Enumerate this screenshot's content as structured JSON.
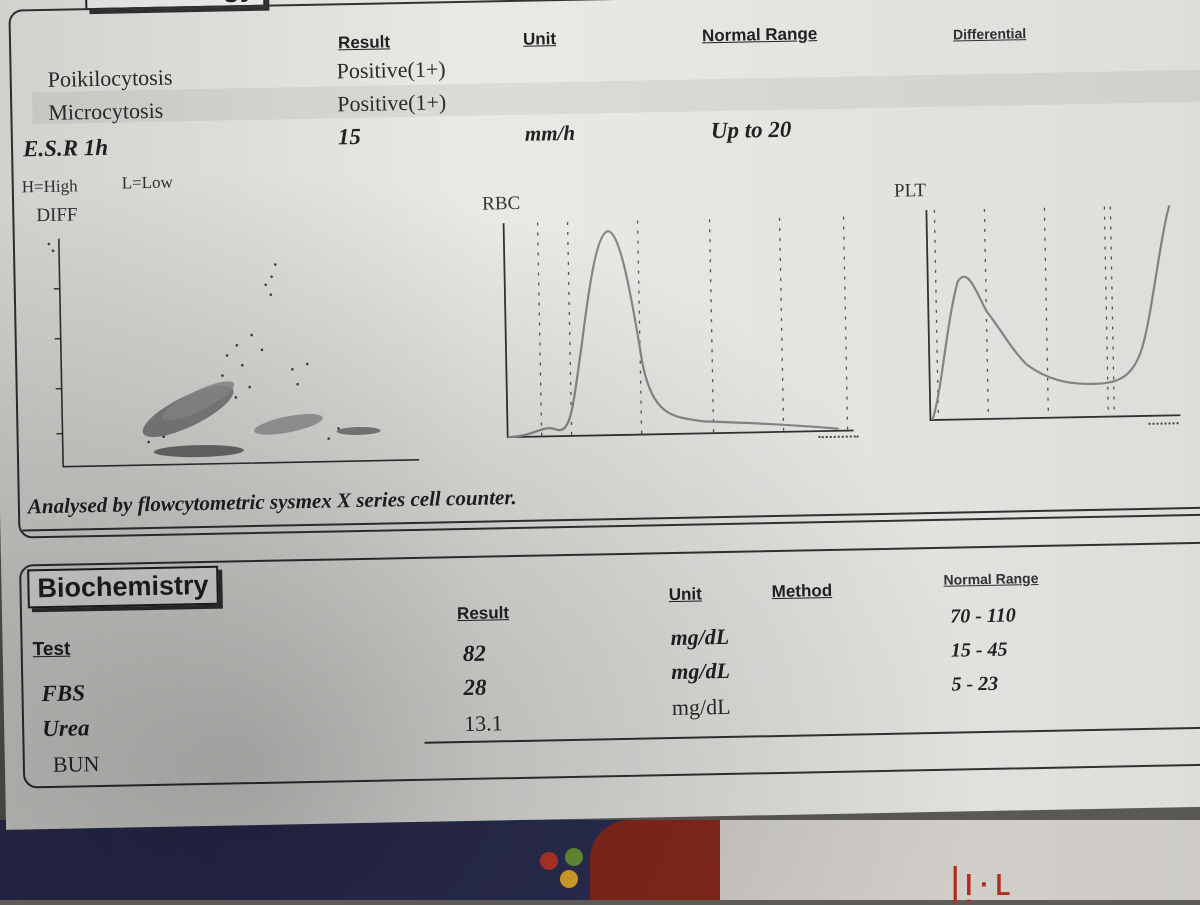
{
  "hematology": {
    "section_title": "Hematology",
    "headers": {
      "result": "Result",
      "unit": "Unit",
      "normal_range": "Normal Range",
      "differential": "Differential"
    },
    "rows": [
      {
        "test": "Poikilocytosis",
        "result": "Positive(1+)"
      },
      {
        "test": "Microcytosis",
        "result": "Positive(1+)"
      },
      {
        "test": "E.S.R 1h",
        "result": "15",
        "unit": "mm/h",
        "normal_range": "Up to 20"
      }
    ],
    "legend_note": {
      "high": "H=High",
      "low": "L=Low"
    },
    "analysed_by": "Analysed by flowcytometric sysmex X series cell counter."
  },
  "charts": {
    "diff": {
      "title": "DIFF"
    },
    "rbc": {
      "title": "RBC"
    },
    "plt": {
      "title": "PLT"
    }
  },
  "biochemistry": {
    "section_title": "Biochemistry",
    "headers": {
      "test": "Test",
      "result": "Result",
      "unit": "Unit",
      "method": "Method",
      "normal_range": "Normal Range"
    },
    "rows": [
      {
        "test": "FBS",
        "result": "82",
        "unit": "mg/dL",
        "normal_range": "70 - 110"
      },
      {
        "test": "Urea",
        "result": "28",
        "unit": "mg/dL",
        "normal_range": "15 - 45"
      },
      {
        "test": "BUN",
        "result": "13.1",
        "unit": "mg/dL",
        "normal_range": "5 - 23"
      }
    ]
  },
  "colors": {
    "paper": "#e9e9e6",
    "ink": "#222222",
    "background": "#5e5c58"
  }
}
